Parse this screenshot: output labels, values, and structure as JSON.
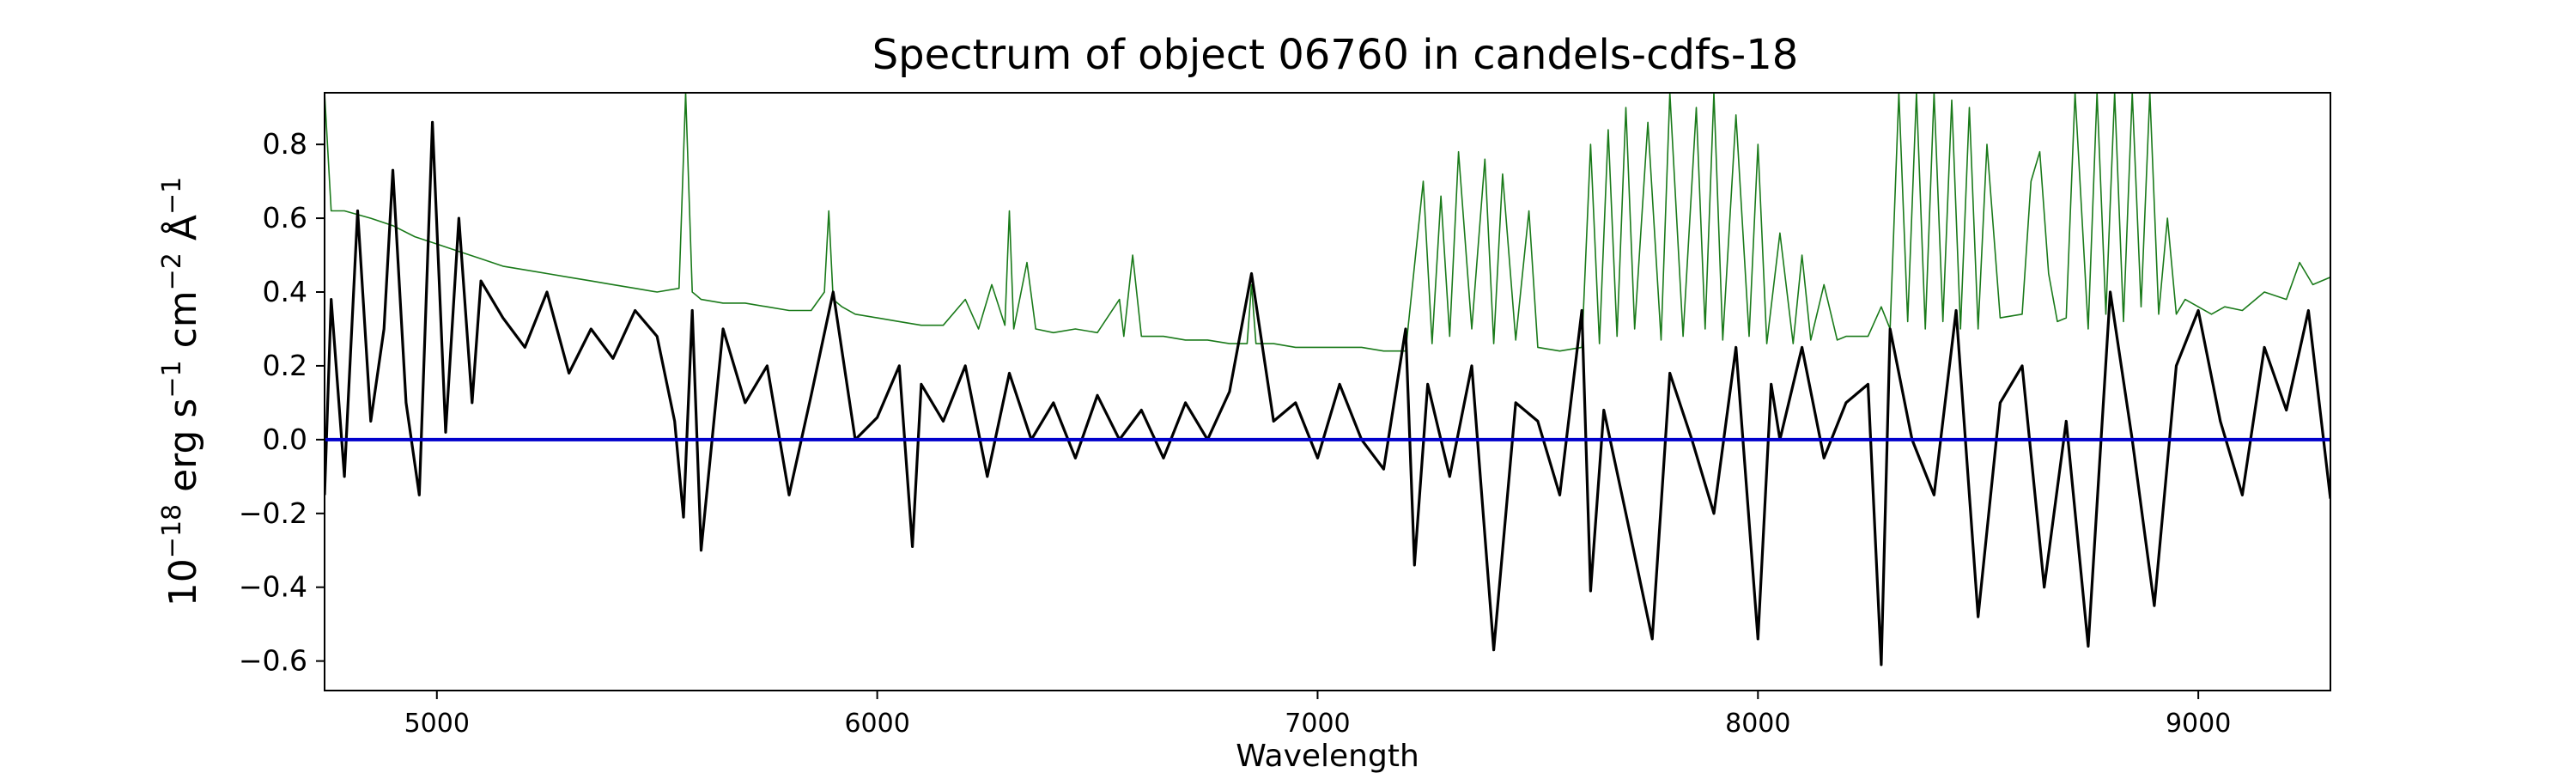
{
  "chart_data": {
    "type": "line",
    "title": "Spectrum of object 06760 in candels-cdfs-18",
    "xlabel": "Wavelength",
    "ylabel": "10^-18 erg s^-1 cm^-2 Å^-1",
    "ylabel_parts": {
      "base": "10",
      "exp": "−18",
      "t1": " erg s",
      "exp1": "−1",
      "t2": " cm",
      "exp2": "−2",
      "t3": " Å",
      "exp3": "−1"
    },
    "xlim": [
      4745,
      9300
    ],
    "ylim": [
      -0.68,
      0.94
    ],
    "xticks": [
      5000,
      6000,
      7000,
      8000,
      9000
    ],
    "yticks": [
      -0.6,
      -0.4,
      -0.2,
      0.0,
      0.2,
      0.4,
      0.6,
      0.8
    ],
    "ytick_labels": [
      "−0.6",
      "−0.4",
      "−0.2",
      "0.0",
      "0.2",
      "0.4",
      "0.6",
      "0.8"
    ],
    "grid": false,
    "series": [
      {
        "role": "error",
        "color": "#1a7a1a",
        "x": [
          4745,
          4760,
          4790,
          4850,
          4900,
          4950,
          5000,
          5050,
          5100,
          5150,
          5200,
          5250,
          5300,
          5350,
          5400,
          5450,
          5500,
          5550,
          5565,
          5580,
          5590,
          5600,
          5650,
          5700,
          5750,
          5800,
          5850,
          5880,
          5890,
          5900,
          5920,
          5950,
          6000,
          6050,
          6100,
          6150,
          6200,
          6230,
          6260,
          6290,
          6300,
          6310,
          6340,
          6360,
          6400,
          6450,
          6500,
          6550,
          6560,
          6580,
          6600,
          6650,
          6700,
          6750,
          6800,
          6840,
          6850,
          6860,
          6900,
          6950,
          7000,
          7050,
          7100,
          7150,
          7200,
          7240,
          7260,
          7280,
          7300,
          7320,
          7350,
          7380,
          7400,
          7420,
          7450,
          7480,
          7500,
          7550,
          7600,
          7620,
          7640,
          7660,
          7680,
          7700,
          7720,
          7750,
          7780,
          7800,
          7830,
          7860,
          7880,
          7900,
          7920,
          7950,
          7980,
          8000,
          8020,
          8050,
          8080,
          8100,
          8120,
          8150,
          8180,
          8200,
          8250,
          8280,
          8300,
          8320,
          8340,
          8360,
          8380,
          8400,
          8420,
          8440,
          8460,
          8480,
          8500,
          8520,
          8550,
          8600,
          8620,
          8640,
          8660,
          8680,
          8700,
          8720,
          8750,
          8770,
          8790,
          8810,
          8830,
          8850,
          8870,
          8890,
          8910,
          8930,
          8950,
          8970,
          9000,
          9030,
          9060,
          9100,
          9150,
          9200,
          9230,
          9260,
          9300
        ],
        "y": [
          0.94,
          0.62,
          0.62,
          0.6,
          0.58,
          0.55,
          0.53,
          0.51,
          0.49,
          0.47,
          0.46,
          0.45,
          0.44,
          0.43,
          0.42,
          0.41,
          0.4,
          0.41,
          0.94,
          0.4,
          0.39,
          0.38,
          0.37,
          0.37,
          0.36,
          0.35,
          0.35,
          0.4,
          0.62,
          0.38,
          0.36,
          0.34,
          0.33,
          0.32,
          0.31,
          0.31,
          0.38,
          0.3,
          0.42,
          0.31,
          0.62,
          0.3,
          0.48,
          0.3,
          0.29,
          0.3,
          0.29,
          0.38,
          0.28,
          0.5,
          0.28,
          0.28,
          0.27,
          0.27,
          0.26,
          0.26,
          0.42,
          0.26,
          0.26,
          0.25,
          0.25,
          0.25,
          0.25,
          0.24,
          0.24,
          0.7,
          0.26,
          0.66,
          0.28,
          0.78,
          0.3,
          0.76,
          0.26,
          0.72,
          0.27,
          0.62,
          0.25,
          0.24,
          0.25,
          0.8,
          0.26,
          0.84,
          0.28,
          0.9,
          0.3,
          0.86,
          0.27,
          0.94,
          0.28,
          0.9,
          0.3,
          0.94,
          0.27,
          0.88,
          0.28,
          0.8,
          0.26,
          0.56,
          0.26,
          0.5,
          0.27,
          0.42,
          0.27,
          0.28,
          0.28,
          0.36,
          0.3,
          0.94,
          0.32,
          0.94,
          0.3,
          0.94,
          0.32,
          0.92,
          0.3,
          0.9,
          0.3,
          0.8,
          0.33,
          0.34,
          0.7,
          0.78,
          0.45,
          0.32,
          0.33,
          0.94,
          0.3,
          0.94,
          0.34,
          0.94,
          0.32,
          0.94,
          0.36,
          0.94,
          0.34,
          0.6,
          0.34,
          0.38,
          0.36,
          0.34,
          0.36,
          0.35,
          0.4,
          0.38,
          0.48,
          0.42,
          0.44
        ]
      },
      {
        "role": "zero-line",
        "color": "#0000cc",
        "x": [
          4745,
          9300
        ],
        "y": [
          0.0,
          0.0
        ]
      },
      {
        "role": "flux",
        "color": "#000000",
        "x": [
          4745,
          4760,
          4790,
          4820,
          4850,
          4880,
          4900,
          4930,
          4960,
          4990,
          5020,
          5050,
          5080,
          5100,
          5150,
          5200,
          5250,
          5300,
          5350,
          5400,
          5450,
          5500,
          5540,
          5560,
          5580,
          5600,
          5650,
          5700,
          5750,
          5800,
          5850,
          5900,
          5950,
          6000,
          6050,
          6080,
          6100,
          6150,
          6200,
          6250,
          6300,
          6350,
          6400,
          6450,
          6500,
          6550,
          6600,
          6650,
          6700,
          6750,
          6800,
          6850,
          6900,
          6950,
          7000,
          7050,
          7100,
          7150,
          7200,
          7220,
          7250,
          7300,
          7350,
          7400,
          7450,
          7500,
          7550,
          7600,
          7620,
          7650,
          7700,
          7760,
          7800,
          7850,
          7900,
          7950,
          8000,
          8030,
          8050,
          8100,
          8150,
          8200,
          8250,
          8280,
          8300,
          8350,
          8400,
          8450,
          8500,
          8550,
          8600,
          8650,
          8700,
          8750,
          8800,
          8850,
          8900,
          8950,
          9000,
          9050,
          9100,
          9150,
          9200,
          9250,
          9300
        ],
        "y": [
          -0.15,
          0.38,
          -0.1,
          0.62,
          0.05,
          0.3,
          0.73,
          0.1,
          -0.15,
          0.86,
          0.02,
          0.6,
          0.1,
          0.43,
          0.33,
          0.25,
          0.4,
          0.18,
          0.3,
          0.22,
          0.35,
          0.28,
          0.05,
          -0.21,
          0.35,
          -0.3,
          0.3,
          0.1,
          0.2,
          -0.15,
          0.12,
          0.4,
          0.0,
          0.06,
          0.2,
          -0.29,
          0.15,
          0.05,
          0.2,
          -0.1,
          0.18,
          0.0,
          0.1,
          -0.05,
          0.12,
          0.0,
          0.08,
          -0.05,
          0.1,
          0.0,
          0.13,
          0.45,
          0.05,
          0.1,
          -0.05,
          0.15,
          0.0,
          -0.08,
          0.3,
          -0.34,
          0.15,
          -0.1,
          0.2,
          -0.57,
          0.1,
          0.05,
          -0.15,
          0.35,
          -0.41,
          0.08,
          -0.2,
          -0.54,
          0.18,
          0.0,
          -0.2,
          0.25,
          -0.54,
          0.15,
          0.0,
          0.25,
          -0.05,
          0.1,
          0.15,
          -0.61,
          0.3,
          0.0,
          -0.15,
          0.35,
          -0.48,
          0.1,
          0.2,
          -0.4,
          0.05,
          -0.56,
          0.4,
          0.0,
          -0.45,
          0.2,
          0.35,
          0.05,
          -0.15,
          0.25,
          0.08,
          0.35,
          -0.16
        ]
      }
    ]
  }
}
